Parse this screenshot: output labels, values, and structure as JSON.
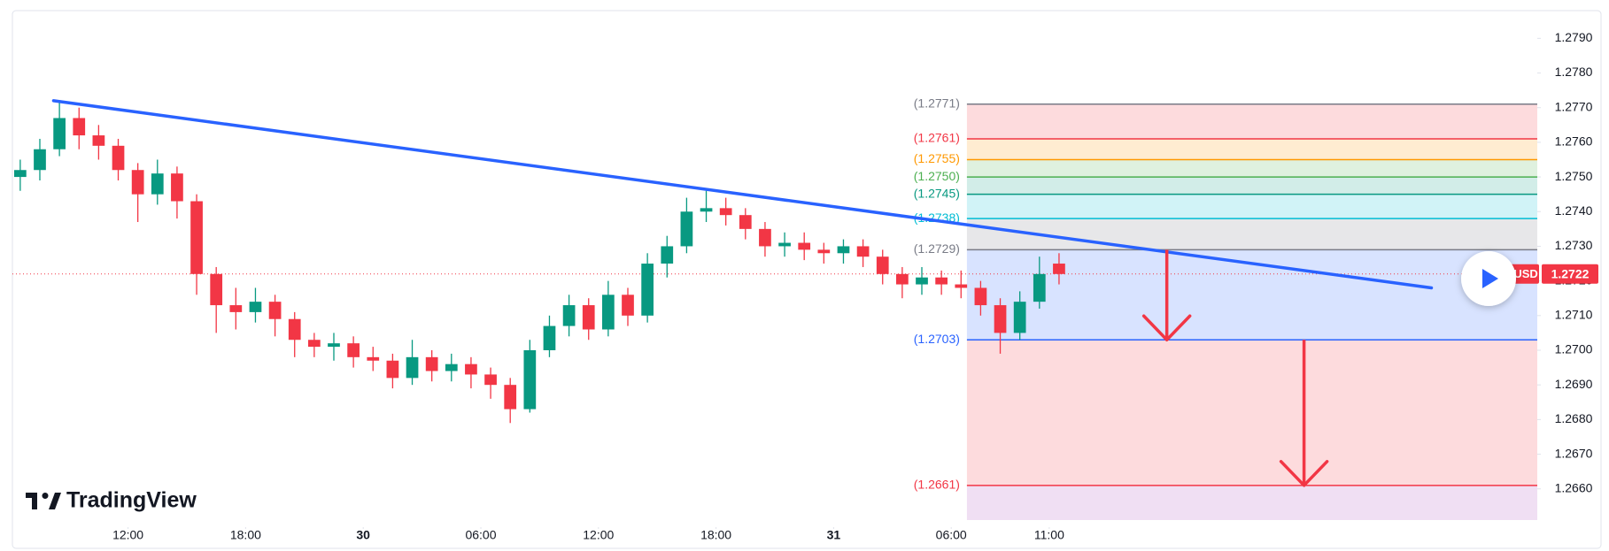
{
  "chart_data": {
    "type": "candlestick",
    "symbol": "GBPUSD",
    "logo": "TradingView",
    "up_color": "#089981",
    "down_color": "#f23645",
    "xlim": [
      6.1,
      83.9
    ],
    "xticks": [
      {
        "value": 12,
        "label": "12:00"
      },
      {
        "value": 18,
        "label": "18:00"
      },
      {
        "value": 24,
        "label": "30"
      },
      {
        "value": 30,
        "label": "06:00"
      },
      {
        "value": 36,
        "label": "12:00"
      },
      {
        "value": 42,
        "label": "18:00"
      },
      {
        "value": 48,
        "label": "31"
      },
      {
        "value": 54,
        "label": "06:00"
      },
      {
        "value": 59,
        "label": "11:00"
      }
    ],
    "ylim": [
      1.2651,
      1.2798
    ],
    "yticks": [
      {
        "value": 1.266,
        "label": "1.2660"
      },
      {
        "value": 1.267,
        "label": "1.2670"
      },
      {
        "value": 1.268,
        "label": "1.2680"
      },
      {
        "value": 1.269,
        "label": "1.2690"
      },
      {
        "value": 1.27,
        "label": "1.2700"
      },
      {
        "value": 1.271,
        "label": "1.2710"
      },
      {
        "value": 1.272,
        "label": "1.2720"
      },
      {
        "value": 1.273,
        "label": "1.2730"
      },
      {
        "value": 1.274,
        "label": "1.2740"
      },
      {
        "value": 1.275,
        "label": "1.2750"
      },
      {
        "value": 1.276,
        "label": "1.2760"
      },
      {
        "value": 1.277,
        "label": "1.2770"
      },
      {
        "value": 1.278,
        "label": "1.2780"
      },
      {
        "value": 1.279,
        "label": "1.2790"
      }
    ],
    "x": [
      6.5,
      7.5,
      8.5,
      9.5,
      10.5,
      11.5,
      12.5,
      13.5,
      14.5,
      15.5,
      16.5,
      17.5,
      18.5,
      19.5,
      20.5,
      21.5,
      22.5,
      23.5,
      24.5,
      25.5,
      26.5,
      27.5,
      28.5,
      29.5,
      30.5,
      31.5,
      32.5,
      33.5,
      34.5,
      35.5,
      36.5,
      37.5,
      38.5,
      39.5,
      40.5,
      41.5,
      42.5,
      43.5,
      44.5,
      45.5,
      46.5,
      47.5,
      48.5,
      49.5,
      50.5,
      51.5,
      52.5,
      53.5,
      54.5,
      55.5,
      56.5,
      57.5,
      58.5,
      59.5
    ],
    "open": [
      1.275,
      1.2752,
      1.2758,
      1.2767,
      1.2762,
      1.2759,
      1.2752,
      1.2745,
      1.2751,
      1.2743,
      1.2722,
      1.2713,
      1.2711,
      1.2714,
      1.2709,
      1.2703,
      1.2701,
      1.2702,
      1.2698,
      1.2697,
      1.2692,
      1.2698,
      1.2694,
      1.2696,
      1.2693,
      1.269,
      1.2683,
      1.27,
      1.2707,
      1.2713,
      1.2706,
      1.2716,
      1.271,
      1.2725,
      1.273,
      1.274,
      1.2741,
      1.2739,
      1.2735,
      1.273,
      1.2731,
      1.2729,
      1.2728,
      1.273,
      1.2727,
      1.2722,
      1.2719,
      1.2721,
      1.2719,
      1.2718,
      1.2713,
      1.2705,
      1.2714,
      1.2725
    ],
    "high": [
      1.2755,
      1.2761,
      1.2772,
      1.277,
      1.2765,
      1.2761,
      1.2754,
      1.2755,
      1.2753,
      1.2745,
      1.2724,
      1.2718,
      1.2718,
      1.2716,
      1.2711,
      1.2705,
      1.2705,
      1.2704,
      1.2701,
      1.2699,
      1.2703,
      1.27,
      1.2699,
      1.2698,
      1.2695,
      1.2692,
      1.2703,
      1.271,
      1.2716,
      1.2715,
      1.272,
      1.2718,
      1.2728,
      1.2733,
      1.2744,
      1.2746,
      1.2744,
      1.2741,
      1.2737,
      1.2734,
      1.2734,
      1.2731,
      1.2732,
      1.2732,
      1.2729,
      1.2724,
      1.2724,
      1.2723,
      1.2723,
      1.272,
      1.2715,
      1.2717,
      1.2727,
      1.2728
    ],
    "low": [
      1.2746,
      1.2749,
      1.2756,
      1.2758,
      1.2755,
      1.2749,
      1.2737,
      1.2742,
      1.2738,
      1.2716,
      1.2705,
      1.2706,
      1.2708,
      1.2704,
      1.2698,
      1.2698,
      1.2697,
      1.2695,
      1.2694,
      1.2689,
      1.269,
      1.2691,
      1.2691,
      1.2689,
      1.2686,
      1.2679,
      1.2682,
      1.2698,
      1.2704,
      1.2703,
      1.2704,
      1.2707,
      1.2708,
      1.2721,
      1.2728,
      1.2737,
      1.2736,
      1.2732,
      1.2727,
      1.2727,
      1.2726,
      1.2725,
      1.2725,
      1.2724,
      1.2719,
      1.2715,
      1.2716,
      1.2716,
      1.2715,
      1.271,
      1.2699,
      1.2703,
      1.2712,
      1.2719
    ],
    "close": [
      1.2752,
      1.2758,
      1.2767,
      1.2762,
      1.2759,
      1.2752,
      1.2745,
      1.2751,
      1.2743,
      1.2722,
      1.2713,
      1.2711,
      1.2714,
      1.2709,
      1.2703,
      1.2701,
      1.2702,
      1.2698,
      1.2697,
      1.2692,
      1.2698,
      1.2694,
      1.2696,
      1.2693,
      1.269,
      1.2683,
      1.27,
      1.2707,
      1.2713,
      1.2706,
      1.2716,
      1.271,
      1.2725,
      1.273,
      1.274,
      1.2741,
      1.2739,
      1.2735,
      1.273,
      1.2731,
      1.2729,
      1.2728,
      1.273,
      1.2727,
      1.2722,
      1.2719,
      1.2721,
      1.2719,
      1.2718,
      1.2713,
      1.2705,
      1.2714,
      1.2722,
      1.2722
    ],
    "last_price": {
      "value": 1.2722,
      "label": "1.2722",
      "color": "#f23645"
    },
    "trendline": {
      "x": [
        8.2,
        78.5
      ],
      "y": [
        1.2772,
        1.2718
      ],
      "color": "#2962ff"
    },
    "fib": {
      "x_start": 54.8,
      "bottom": 1.2651,
      "bottom_color": "#9c27b0",
      "levels": [
        {
          "value": 1.2771,
          "label": "(1.2771)",
          "color": "#787b86"
        },
        {
          "value": 1.2761,
          "label": "(1.2761)",
          "color": "#f23645"
        },
        {
          "value": 1.2755,
          "label": "(1.2755)",
          "color": "#ff9800"
        },
        {
          "value": 1.275,
          "label": "(1.2750)",
          "color": "#4caf50"
        },
        {
          "value": 1.2745,
          "label": "(1.2745)",
          "color": "#089981"
        },
        {
          "value": 1.2738,
          "label": "(1.2738)",
          "color": "#00bcd4"
        },
        {
          "value": 1.2729,
          "label": "(1.2729)",
          "color": "#787b86"
        },
        {
          "value": 1.2703,
          "label": "(1.2703)",
          "color": "#2962ff"
        },
        {
          "value": 1.2661,
          "label": "(1.2661)",
          "color": "#f23645"
        }
      ]
    },
    "arrows": [
      {
        "x": 65,
        "from": 1.2729,
        "to": 1.2703,
        "color": "#f23645"
      },
      {
        "x": 72,
        "from": 1.2703,
        "to": 1.2661,
        "color": "#f23645"
      }
    ]
  }
}
